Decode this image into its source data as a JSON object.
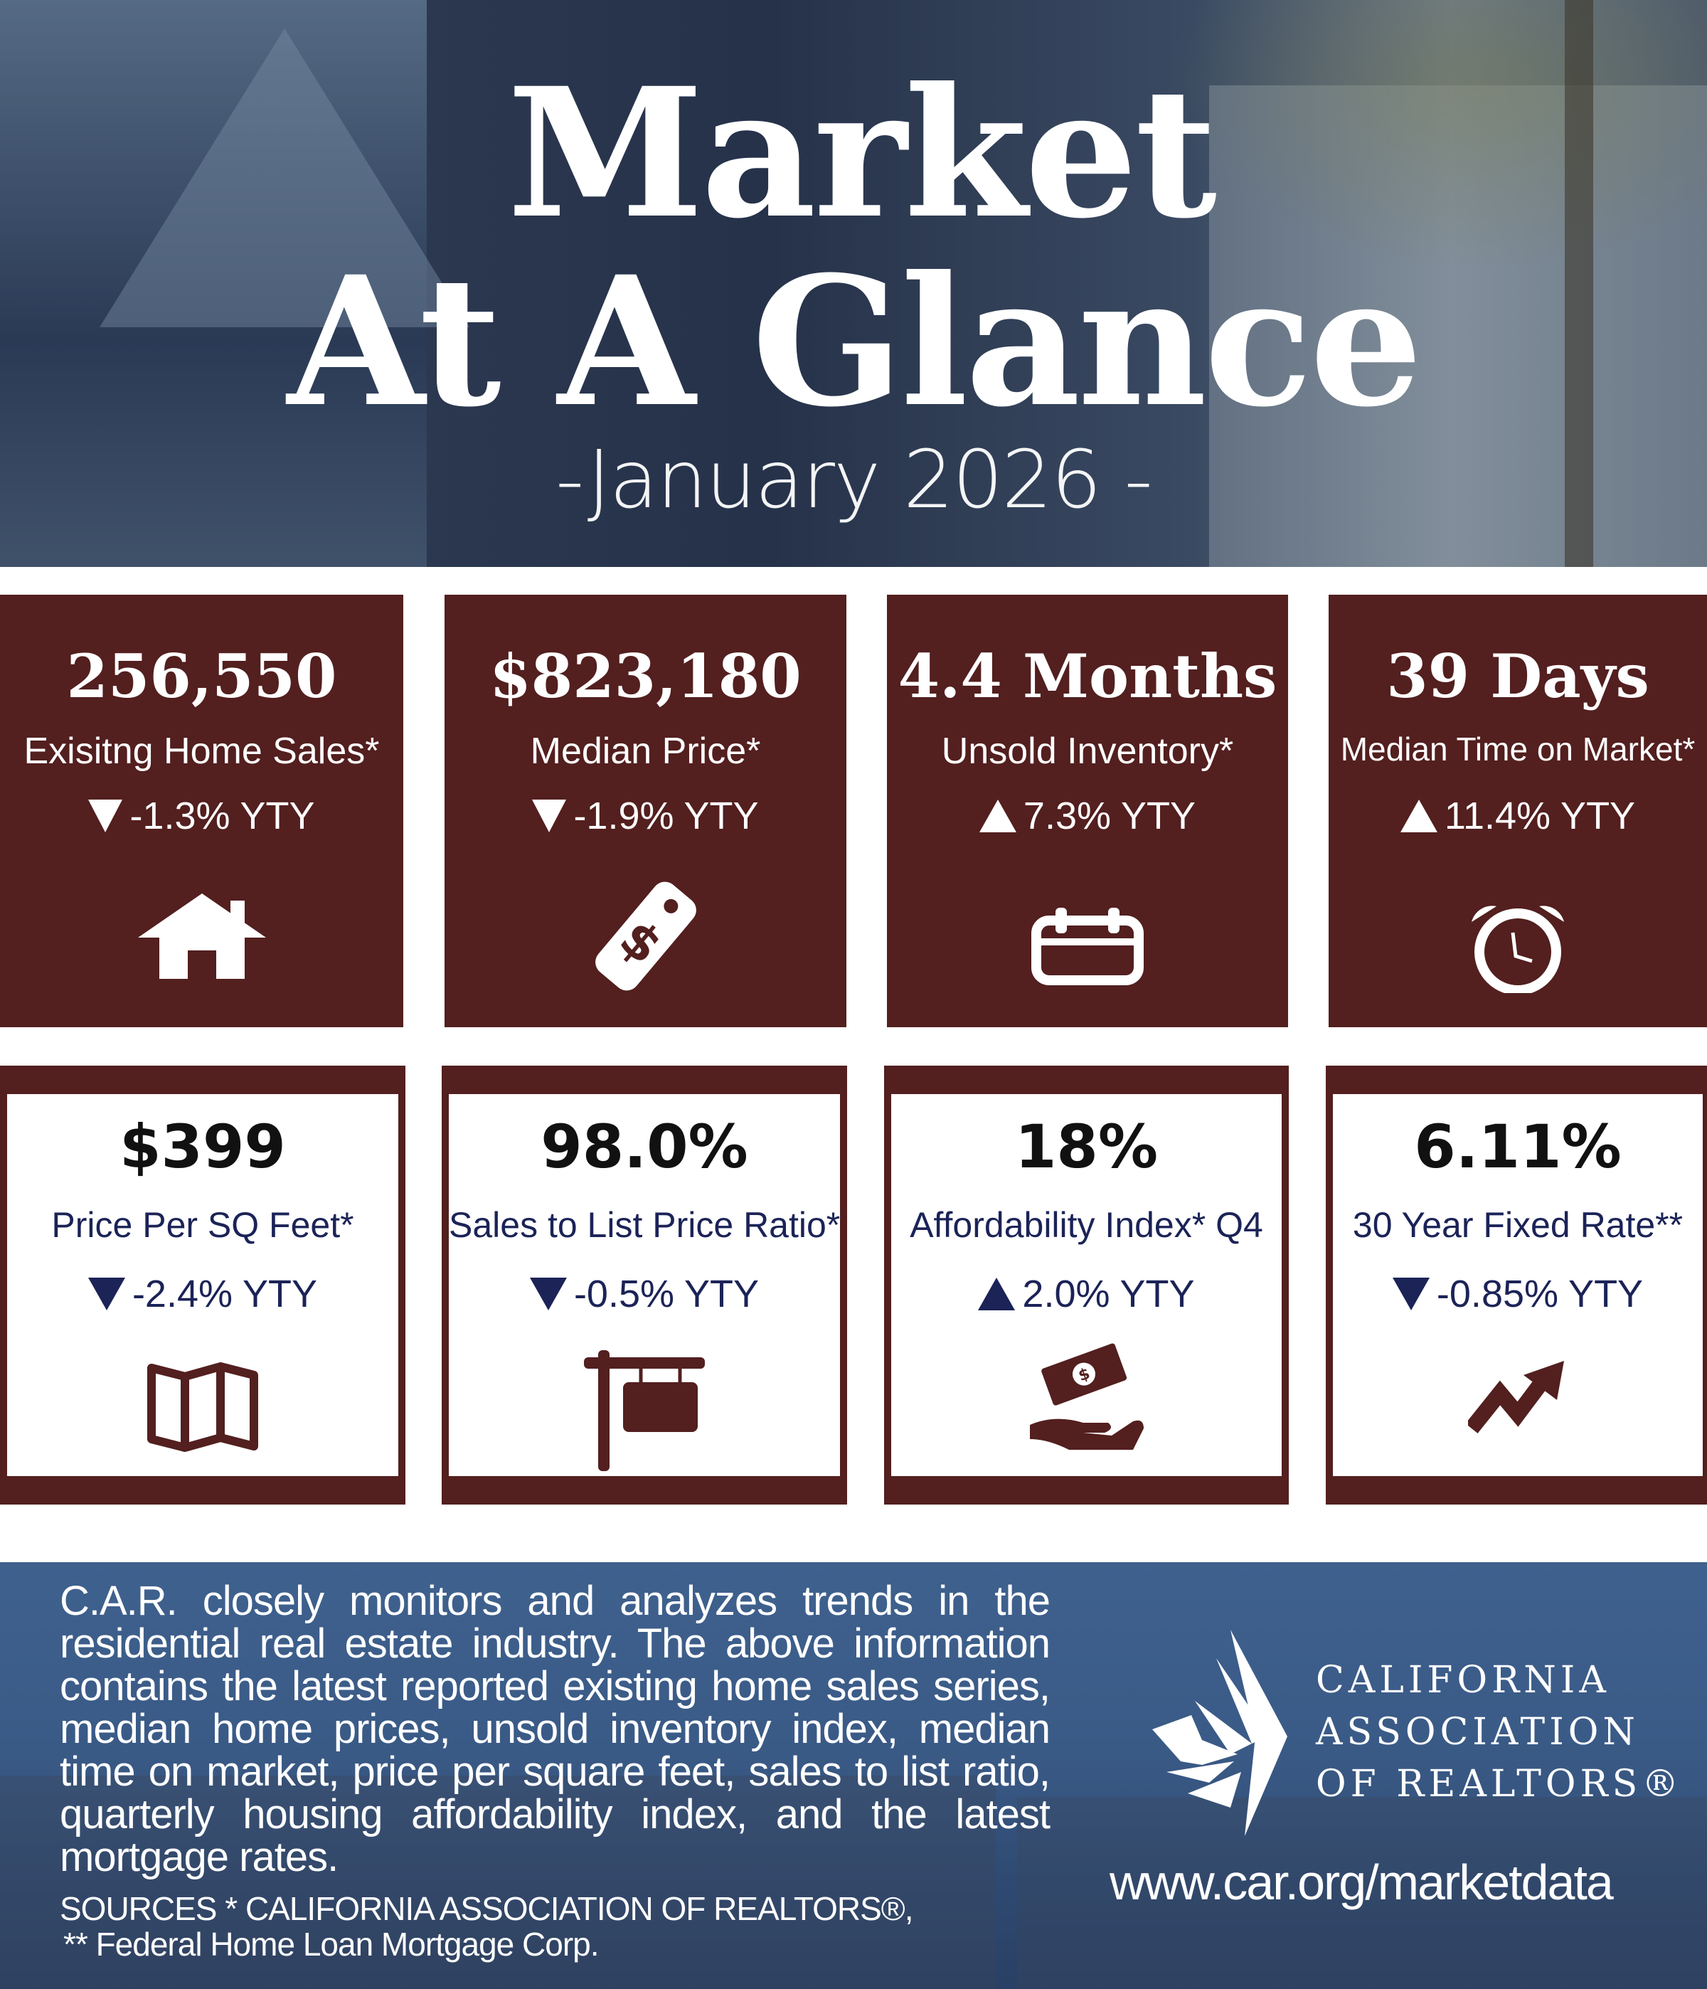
{
  "header": {
    "title_line1": "Market",
    "title_line2": "At A Glance",
    "date": "-January 2026 -"
  },
  "colors": {
    "maroon": "#531f1f",
    "navy": "#1b2357",
    "footer_blue": "#3a5a86"
  },
  "top_cards": [
    {
      "value": "256,550",
      "label": "Exisitng Home Sales*",
      "change": "-1.3% YTY",
      "direction": "down",
      "icon": "house-icon"
    },
    {
      "value": "$823,180",
      "label": "Median Price*",
      "change": "-1.9% YTY",
      "direction": "down",
      "icon": "price-tag-icon"
    },
    {
      "value": "4.4 Months",
      "label": "Unsold Inventory*",
      "change": "7.3% YTY",
      "direction": "up",
      "icon": "calendar-icon"
    },
    {
      "value": "39 Days",
      "label": "Median Time on Market*",
      "change": "11.4% YTY",
      "direction": "up",
      "icon": "alarm-clock-icon"
    }
  ],
  "bottom_cards": [
    {
      "value": "$399",
      "label": "Price Per SQ Feet*",
      "change": "-2.4% YTY",
      "direction": "down",
      "icon": "map-icon"
    },
    {
      "value": "98.0%",
      "label": "Sales to List Price Ratio*",
      "change": "-0.5% YTY",
      "direction": "down",
      "icon": "for-sale-sign-icon"
    },
    {
      "value": "18%",
      "label": "Affordability Index* Q4",
      "change": "2.0% YTY",
      "direction": "up",
      "icon": "hand-money-icon"
    },
    {
      "value": "6.11%",
      "label": "30 Year Fixed Rate**",
      "change": "-0.85% YTY",
      "direction": "down",
      "icon": "trend-arrow-icon"
    }
  ],
  "footer": {
    "description": "C.A.R. closely monitors and analyzes trends in the residential real estate industry. The above information contains the latest reported existing home sales series, median home prices, unsold inventory index, median time on market, price per square feet, sales to list ratio, quarterly housing affordability index, and the latest mortgage rates.",
    "sources_line1": "SOURCES * CALIFORNIA ASSOCIATION OF REALTORS®,",
    "sources_line2": "** Federal Home Loan Mortgage Corp.",
    "logo_lines": [
      "CALIFORNIA",
      "ASSOCIATION",
      "OF REALTORS®"
    ],
    "url": "www.car.org/marketdata"
  }
}
